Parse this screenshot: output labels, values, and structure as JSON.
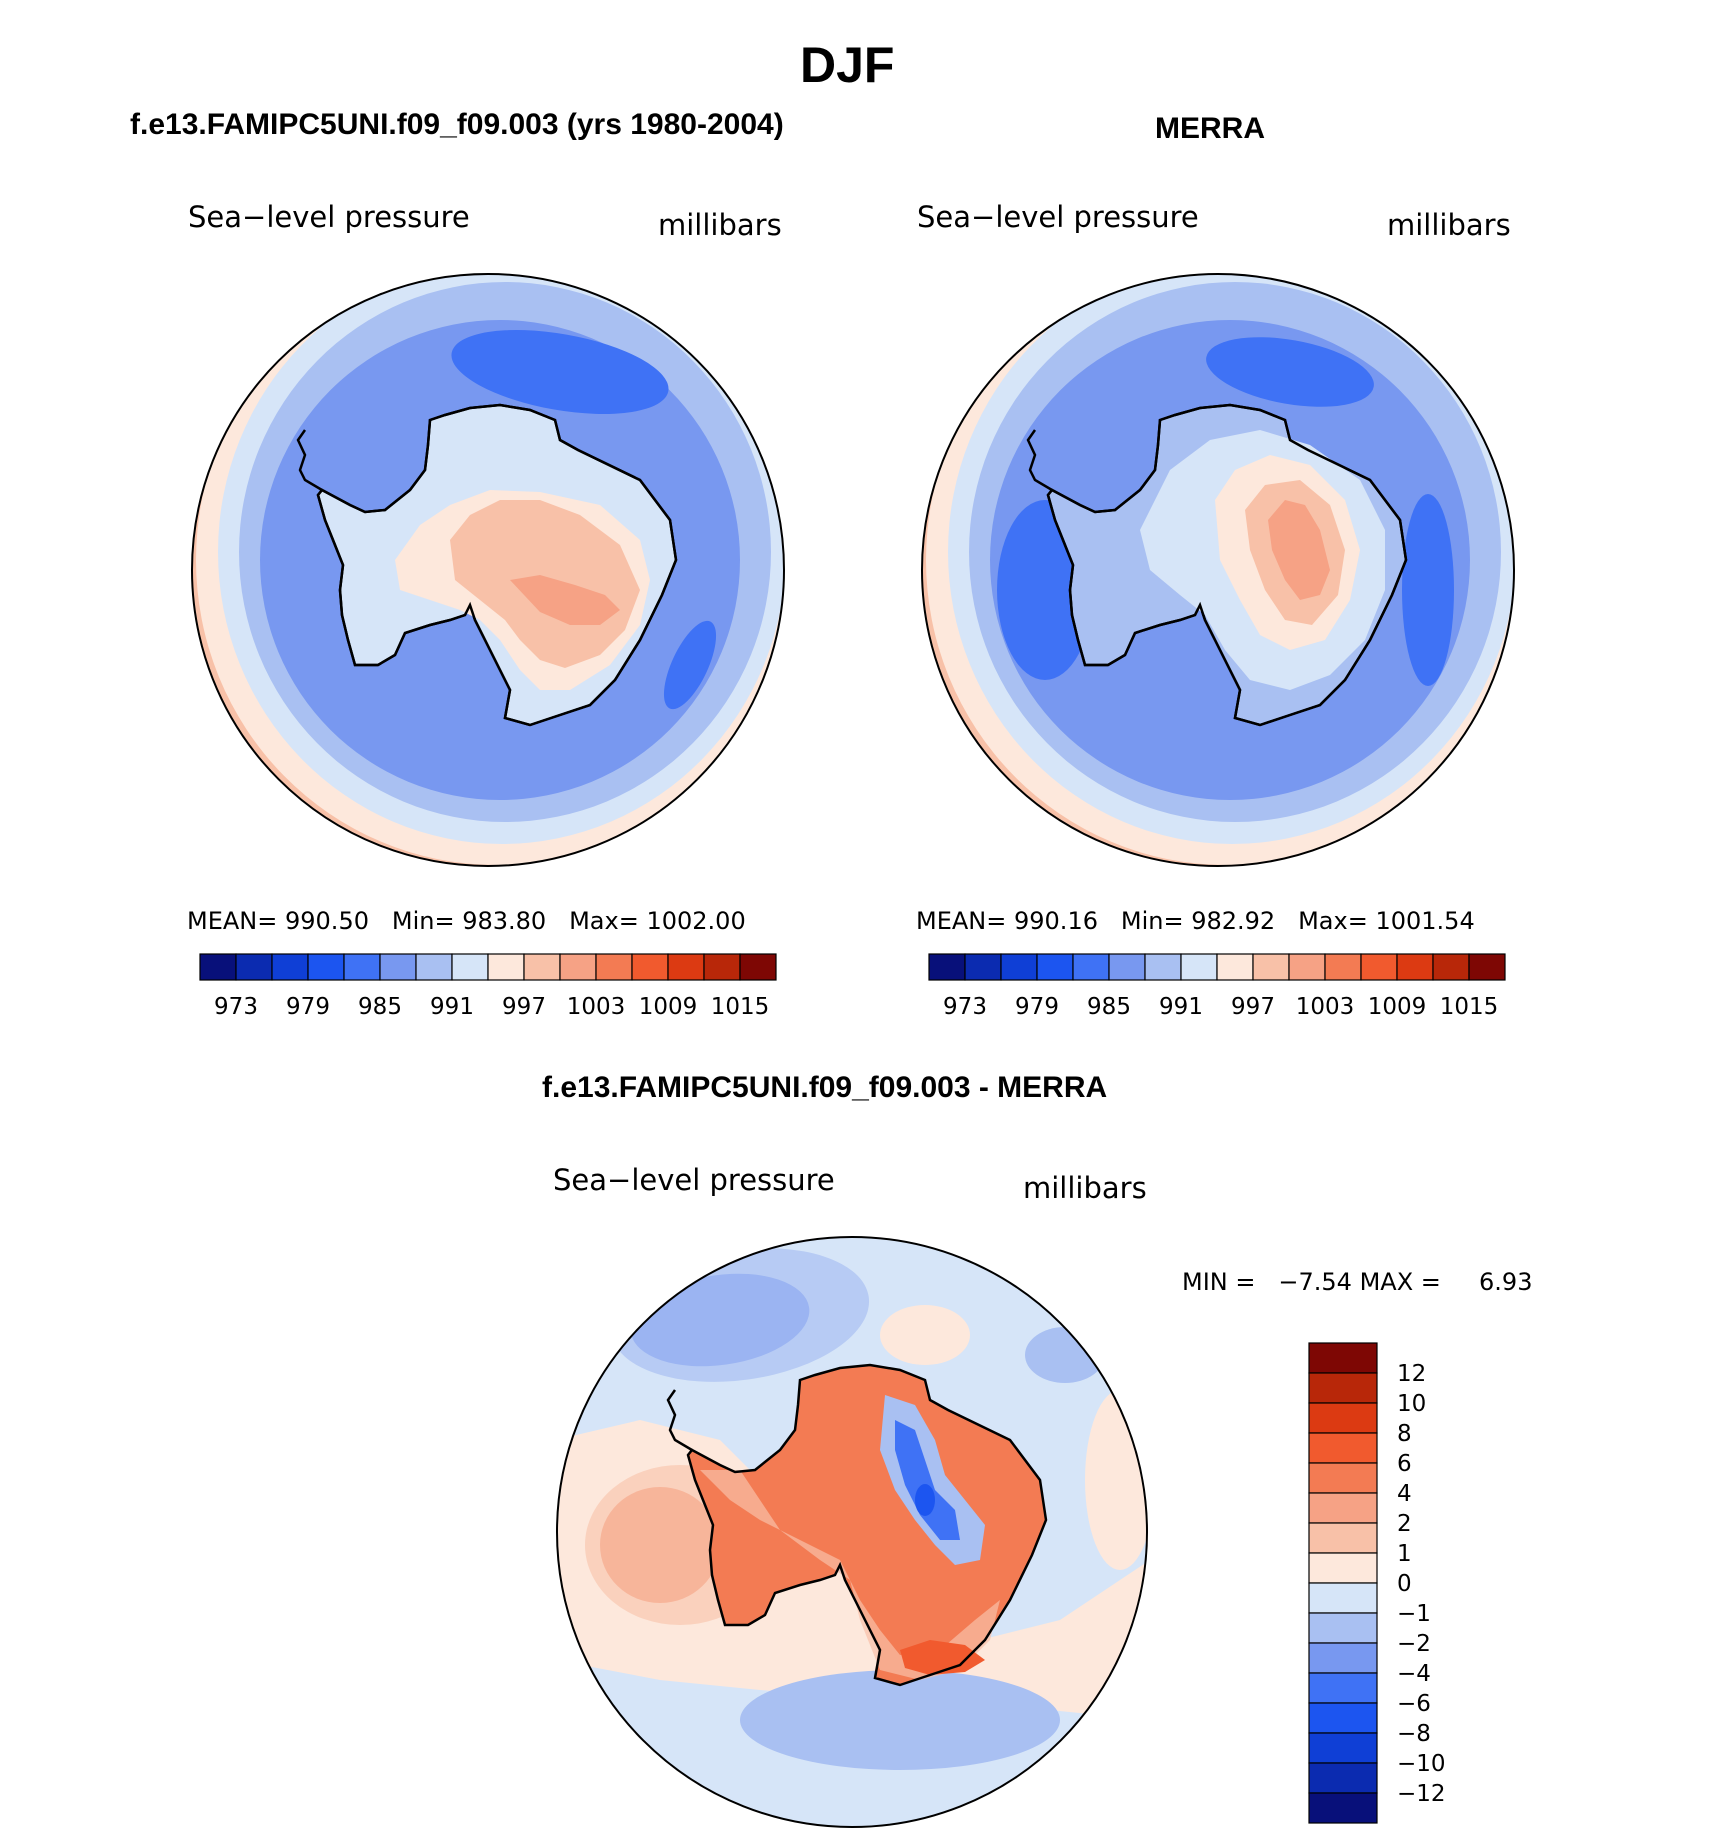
{
  "figure_title": "DJF",
  "panels": [
    {
      "title": "f.e13.FAMIPC5UNI.f09_f09.003 (yrs 1980-2004)",
      "variable": "Sea−level pressure",
      "units": "millibars",
      "stats": {
        "mean_label": "MEAN=",
        "mean": "990.50",
        "min_label": "Min=",
        "min": "983.80",
        "max_label": "Max=",
        "max": "1002.00"
      }
    },
    {
      "title": "MERRA",
      "variable": "Sea−level pressure",
      "units": "millibars",
      "stats": {
        "mean_label": "MEAN=",
        "mean": "990.16",
        "min_label": "Min=",
        "min": "982.92",
        "max_label": "Max=",
        "max": "1001.54"
      }
    },
    {
      "title": "f.e13.FAMIPC5UNI.f09_f09.003 - MERRA",
      "variable": "Sea−level pressure",
      "units": "millibars",
      "stats": {
        "min_label": "MIN =",
        "min": "−7.54",
        "max_label": "MAX =",
        "max": "6.93"
      }
    }
  ],
  "chart_data": [
    {
      "type": "heatmap",
      "projection": "south polar stereographic",
      "title": "f.e13.FAMIPC5UNI.f09_f09.003 (yrs 1980-2004)",
      "variable": "Sea-level pressure",
      "units": "millibars",
      "mean": 990.5,
      "min": 983.8,
      "max": 1002.0,
      "colorbar": {
        "orientation": "horizontal",
        "levels": [
          973,
          976,
          979,
          982,
          985,
          988,
          991,
          994,
          997,
          1000,
          1003,
          1006,
          1009,
          1012,
          1015
        ],
        "tick_labels": [
          "973",
          "979",
          "985",
          "991",
          "997",
          "1003",
          "1009",
          "1015"
        ],
        "colors": [
          "#08107a",
          "#0b2bb0",
          "#0f3fd6",
          "#1c55f0",
          "#3f72f5",
          "#7898f0",
          "#a9c0f2",
          "#d6e5f8",
          "#fde8dc",
          "#f8c1a8",
          "#f6a285",
          "#f37b53",
          "#f15a2e",
          "#dc3a12",
          "#b82709",
          "#7e0704"
        ]
      }
    },
    {
      "type": "heatmap",
      "projection": "south polar stereographic",
      "title": "MERRA",
      "variable": "Sea-level pressure",
      "units": "millibars",
      "mean": 990.16,
      "min": 982.92,
      "max": 1001.54,
      "colorbar": {
        "orientation": "horizontal",
        "levels": [
          973,
          976,
          979,
          982,
          985,
          988,
          991,
          994,
          997,
          1000,
          1003,
          1006,
          1009,
          1012,
          1015
        ],
        "tick_labels": [
          "973",
          "979",
          "985",
          "991",
          "997",
          "1003",
          "1009",
          "1015"
        ],
        "colors": [
          "#08107a",
          "#0b2bb0",
          "#0f3fd6",
          "#1c55f0",
          "#3f72f5",
          "#7898f0",
          "#a9c0f2",
          "#d6e5f8",
          "#fde8dc",
          "#f8c1a8",
          "#f6a285",
          "#f37b53",
          "#f15a2e",
          "#dc3a12",
          "#b82709",
          "#7e0704"
        ]
      }
    },
    {
      "type": "heatmap",
      "projection": "south polar stereographic",
      "title": "f.e13.FAMIPC5UNI.f09_f09.003 - MERRA",
      "variable": "Sea-level pressure",
      "units": "millibars",
      "min": -7.54,
      "max": 6.93,
      "colorbar": {
        "orientation": "vertical",
        "levels": [
          12,
          10,
          8,
          6,
          4,
          2,
          1,
          0,
          -1,
          -2,
          -4,
          -6,
          -8,
          -10,
          -12
        ],
        "tick_labels": [
          "12",
          "10",
          "8",
          "6",
          "4",
          "2",
          "1",
          "0",
          "−1",
          "−2",
          "−4",
          "−6",
          "−8",
          "−10",
          "−12"
        ],
        "colors": [
          "#7e0704",
          "#b82709",
          "#dc3a12",
          "#f15a2e",
          "#f37b53",
          "#f6a285",
          "#f8c1a8",
          "#fde8dc",
          "#d6e5f8",
          "#a9c0f2",
          "#7898f0",
          "#3f72f5",
          "#1c55f0",
          "#0f3fd6",
          "#0b2bb0",
          "#08107a"
        ]
      }
    }
  ]
}
